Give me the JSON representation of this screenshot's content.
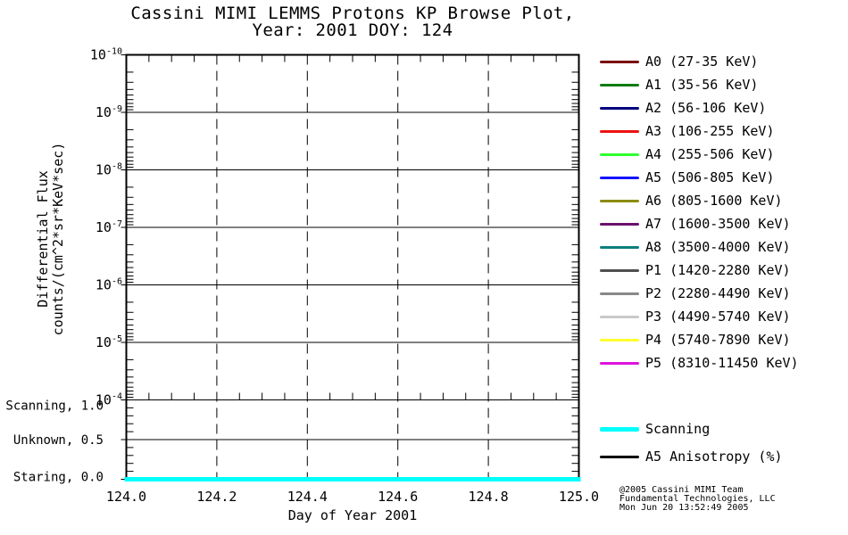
{
  "title": {
    "line1": "Cassini MIMI LEMMS Protons KP Browse Plot,",
    "line2": "Year: 2001 DOY: 124"
  },
  "axes": {
    "x_label": "Day of Year 2001",
    "y_label_line1": "Differential Flux",
    "y_label_line2": "counts/(cm^2*sr*KeV*sec)",
    "x_ticks": [
      "124.0",
      "124.2",
      "124.4",
      "124.6",
      "124.8",
      "125.0"
    ],
    "y_log_exponents": [
      "-10",
      "-9",
      "-8",
      "-7",
      "-6",
      "-5",
      "-4"
    ],
    "status_levels": [
      {
        "label": "Scanning",
        "value": "1.0"
      },
      {
        "label": "Unknown",
        "value": "0.5"
      },
      {
        "label": "Staring",
        "value": "0.0"
      }
    ]
  },
  "legend": {
    "flux_channels": [
      {
        "label": "A0 (27-35 KeV)",
        "color": "#7A0B0B"
      },
      {
        "label": "A1 (35-56 KeV)",
        "color": "#0E7D0E"
      },
      {
        "label": "A2 (56-106 KeV)",
        "color": "#00007D"
      },
      {
        "label": "A3 (106-255 KeV)",
        "color": "#EE1111"
      },
      {
        "label": "A4 (255-506 KeV)",
        "color": "#2EFF2E"
      },
      {
        "label": "A5 (506-805 KeV)",
        "color": "#1414FF"
      },
      {
        "label": "A6 (805-1600 KeV)",
        "color": "#8C8C12"
      },
      {
        "label": "A7 (1600-3500 KeV)",
        "color": "#6B116B"
      },
      {
        "label": "A8 (3500-4000 KeV)",
        "color": "#0E7D7D"
      },
      {
        "label": "P1 (1420-2280 KeV)",
        "color": "#4F4F4F"
      },
      {
        "label": "P2 (2280-4490 KeV)",
        "color": "#888888"
      },
      {
        "label": "P3 (4490-5740 KeV)",
        "color": "#C9C9C9"
      },
      {
        "label": "P4 (5740-7890 KeV)",
        "color": "#FFFF30"
      },
      {
        "label": "P5 (8310-11450 KeV)",
        "color": "#DD13DD"
      }
    ],
    "status": [
      {
        "label": "Scanning",
        "color": "#00FFFF",
        "thick": true
      },
      {
        "label": "A5 Anisotropy (%)",
        "color": "#000000",
        "thick": false
      }
    ]
  },
  "copyright": {
    "line1": "@2005 Cassini MIMI Team",
    "line2": "Fundamental Technologies, LLC",
    "line3": "Mon Jun 20 13:52:49 2005"
  },
  "chart_data": {
    "type": "line",
    "title": "Cassini MIMI LEMMS Protons KP Browse Plot, Year: 2001 DOY: 124",
    "xlabel": "Day of Year 2001",
    "ylabel": "Differential Flux counts/(cm^2*sr*KeV*sec)",
    "x_range": [
      124.0,
      125.0
    ],
    "x_major_tick_step": 0.2,
    "x_minor_tick_step": 0.05,
    "y_flux_axis": {
      "scale": "log",
      "top_value": 1e-10,
      "bottom_value": 0.0001,
      "note": "decade gridlines; exponent runs from -10 at top to -4 at bottom of the flux panel"
    },
    "y_status_axis": {
      "levels": [
        {
          "label": "Scanning",
          "value": 1.0
        },
        {
          "label": "Unknown",
          "value": 0.5
        },
        {
          "label": "Staring",
          "value": 0.0
        }
      ]
    },
    "grid": {
      "horizontal": "solid black line at each flux decade and at status 0.5",
      "vertical": "dashed black line every 0.2 day"
    },
    "legend_position": "right",
    "series": [
      {
        "name": "Scanning",
        "axis": "status",
        "color": "#00FFFF",
        "x": [
          124.0,
          125.0
        ],
        "y": [
          0.0,
          0.0
        ],
        "note": "flat thick cyan line along the bottom axis (status 0.0) for the entire day"
      },
      {
        "name": "A5 Anisotropy (%)",
        "axis": "status",
        "color": "#000000",
        "x": [],
        "y": [],
        "note": "no visible data"
      },
      {
        "name": "A0 (27-35 KeV)",
        "axis": "flux",
        "color": "#7A0B0B",
        "x": [],
        "y": []
      },
      {
        "name": "A1 (35-56 KeV)",
        "axis": "flux",
        "color": "#0E7D0E",
        "x": [],
        "y": []
      },
      {
        "name": "A2 (56-106 KeV)",
        "axis": "flux",
        "color": "#00007D",
        "x": [],
        "y": []
      },
      {
        "name": "A3 (106-255 KeV)",
        "axis": "flux",
        "color": "#EE1111",
        "x": [],
        "y": []
      },
      {
        "name": "A4 (255-506 KeV)",
        "axis": "flux",
        "color": "#2EFF2E",
        "x": [],
        "y": []
      },
      {
        "name": "A5 (506-805 KeV)",
        "axis": "flux",
        "color": "#1414FF",
        "x": [],
        "y": []
      },
      {
        "name": "A6 (805-1600 KeV)",
        "axis": "flux",
        "color": "#8C8C12",
        "x": [],
        "y": []
      },
      {
        "name": "A7 (1600-3500 KeV)",
        "axis": "flux",
        "color": "#6B116B",
        "x": [],
        "y": []
      },
      {
        "name": "A8 (3500-4000 KeV)",
        "axis": "flux",
        "color": "#0E7D7D",
        "x": [],
        "y": []
      },
      {
        "name": "P1 (1420-2280 KeV)",
        "axis": "flux",
        "color": "#4F4F4F",
        "x": [],
        "y": []
      },
      {
        "name": "P2 (2280-4490 KeV)",
        "axis": "flux",
        "color": "#888888",
        "x": [],
        "y": []
      },
      {
        "name": "P3 (4490-5740 KeV)",
        "axis": "flux",
        "color": "#C9C9C9",
        "x": [],
        "y": []
      },
      {
        "name": "P4 (5740-7890 KeV)",
        "axis": "flux",
        "color": "#FFFF30",
        "x": [],
        "y": []
      },
      {
        "name": "P5 (8310-11450 KeV)",
        "axis": "flux",
        "color": "#DD13DD",
        "x": [],
        "y": []
      }
    ]
  }
}
